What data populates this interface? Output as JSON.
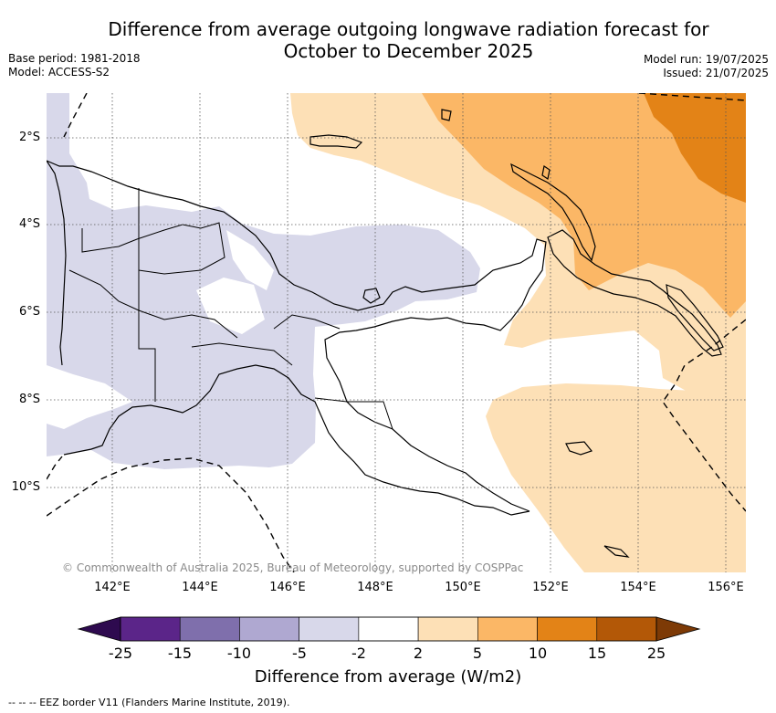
{
  "title_line1": "Difference from average outgoing longwave radiation forecast for",
  "title_line2": "October to December 2025",
  "meta_left": [
    "Base period: 1981-2018",
    "Model: ACCESS-S2"
  ],
  "meta_right": [
    "Model run: 19/07/2025",
    "Issued: 21/07/2025"
  ],
  "lat_labels": [
    "2°S",
    "4°S",
    "6°S",
    "8°S",
    "10°S"
  ],
  "lon_labels": [
    "142°E",
    "144°E",
    "146°E",
    "148°E",
    "150°E",
    "152°E",
    "154°E",
    "156°E"
  ],
  "copyright": "© Commonwealth of Australia 2025, Bureau of Meteorology, supported by COSPPac",
  "colorbar": {
    "ticks": [
      "-25",
      "-15",
      "-10",
      "-5",
      "-2",
      "2",
      "5",
      "10",
      "15",
      "25"
    ],
    "colors": [
      "#5b2589",
      "#7f6fac",
      "#afa8d1",
      "#d8d8ea",
      "#ffffff",
      "#fde0b6",
      "#fbb766",
      "#e38317",
      "#b35807"
    ],
    "under_color": "#2e0a4f",
    "over_color": "#7d3a06",
    "title": "Difference from average (W/m2)"
  },
  "footnote": "--  --  -- EEZ border V11 (Flanders Marine Institute, 2019)."
}
